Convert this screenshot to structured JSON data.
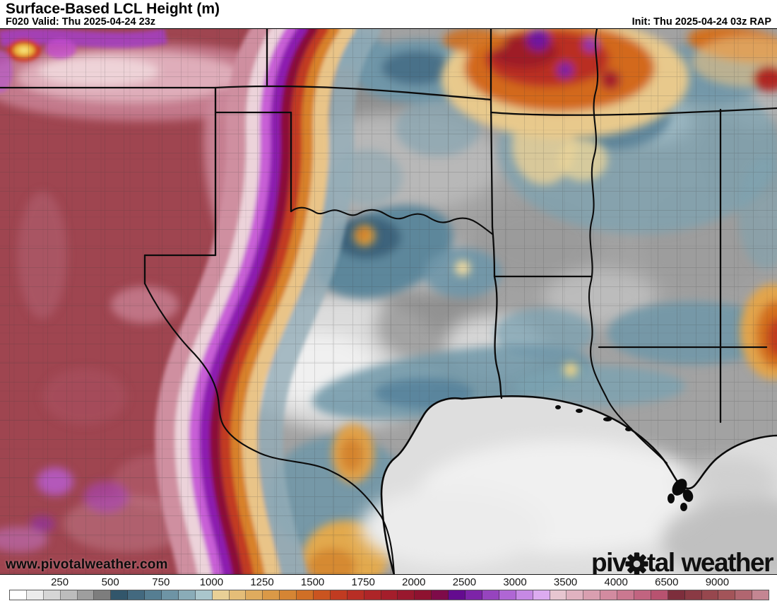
{
  "header": {
    "title": "Surface-Based LCL Height (m)",
    "valid_label": "F020 Valid: Thu 2025-04-24 23z",
    "init_label": "Init: Thu 2025-04-24 03z RAP",
    "forecast_hour": "F020",
    "model": "RAP"
  },
  "branding": {
    "watermark": "www.pivotalweather.com",
    "logo_piv": "piv",
    "logo_tal": "tal",
    "logo_weather": "weather"
  },
  "colorbar": {
    "unit": "m",
    "labels": [
      "250",
      "500",
      "750",
      "1000",
      "1250",
      "1500",
      "1750",
      "2000",
      "2500",
      "3000",
      "3500",
      "4000",
      "6500",
      "9000"
    ],
    "colors": [
      "#ffffff",
      "#ececec",
      "#d6d6d6",
      "#bcbcbc",
      "#9e9e9e",
      "#7d7d7d",
      "#32566b",
      "#43697f",
      "#567e92",
      "#6e94a5",
      "#8aacb8",
      "#aac6cc",
      "#e9d096",
      "#e4bd78",
      "#dfab5e",
      "#da9947",
      "#d58534",
      "#d06f26",
      "#ca5420",
      "#c13b21",
      "#b82e25",
      "#ae2528",
      "#a41e2b",
      "#99182e",
      "#8e1230",
      "#7e0b49",
      "#640b8f",
      "#7d24a8",
      "#9644be",
      "#af66d4",
      "#c689e4",
      "#dcabf0",
      "#e7c6d0",
      "#e0b2c0",
      "#d99fb0",
      "#d28ba0",
      "#ca7890",
      "#c16480",
      "#b85270",
      "#7d2e3c",
      "#8a3a44",
      "#97474e",
      "#a35459",
      "#b16670",
      "#c48692"
    ]
  },
  "map": {
    "key_colors": {
      "low_lcl_gray": "#d9d9d9",
      "mid_lcl_blue": "#6d95a6",
      "moderate_lcl_tan": "#e9c488",
      "high_lcl_orange": "#d3691f",
      "high_lcl_red": "#b52a22",
      "very_high_lcl_purple": "#8d1bb0",
      "extreme_lcl_pink": "#d28ba0",
      "plateau_maroon": "#9f4550",
      "border_black": "#0b0b0b"
    }
  }
}
